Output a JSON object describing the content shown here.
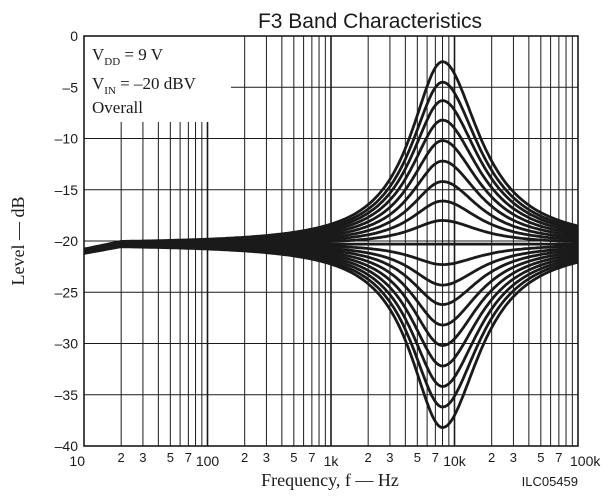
{
  "chart_data": {
    "type": "line",
    "title": "F3 Band Characteristics",
    "xlabel": "Frequency, f — Hz",
    "ylabel": "Level — dB",
    "figure_id": "ILC05459",
    "annotations": {
      "vdd_main": "V",
      "vdd_sub": "DD",
      "vdd_rest": " = 9 V",
      "vin_main": "V",
      "vin_sub": "IN",
      "vin_rest": " = –20 dBV",
      "overall": "Overall"
    },
    "x_scale": "log",
    "xlim": [
      10,
      100000
    ],
    "ylim": [
      -40,
      0
    ],
    "grid": true,
    "y_ticks": [
      0,
      -5,
      -10,
      -15,
      -20,
      -25,
      -30,
      -35,
      -40
    ],
    "y_tick_labels": [
      "0",
      "–5",
      "–10",
      "–15",
      "–20",
      "–25",
      "–30",
      "–35",
      "–40"
    ],
    "x_decade_labels": [
      {
        "value": 10,
        "label": "10"
      },
      {
        "value": 100,
        "label": "100"
      },
      {
        "value": 1000,
        "label": "1k"
      },
      {
        "value": 10000,
        "label": "10k"
      },
      {
        "value": 100000,
        "label": "100k"
      }
    ],
    "x_minor_labels": [
      {
        "value": 20,
        "label": "2"
      },
      {
        "value": 30,
        "label": "3"
      },
      {
        "value": 50,
        "label": "5"
      },
      {
        "value": 70,
        "label": "7"
      },
      {
        "value": 200,
        "label": "2"
      },
      {
        "value": 300,
        "label": "3"
      },
      {
        "value": 500,
        "label": "5"
      },
      {
        "value": 700,
        "label": "7"
      },
      {
        "value": 2000,
        "label": "2"
      },
      {
        "value": 3000,
        "label": "3"
      },
      {
        "value": 5000,
        "label": "5"
      },
      {
        "value": 7000,
        "label": "7"
      },
      {
        "value": 20000,
        "label": "2"
      },
      {
        "value": 30000,
        "label": "3"
      },
      {
        "value": 50000,
        "label": "5"
      },
      {
        "value": 70000,
        "label": "7"
      }
    ],
    "center_frequency_hz": 8000,
    "baseline_db": -20.3,
    "series": [
      {
        "peak_level_db": -2.5
      },
      {
        "peak_level_db": -4.5
      },
      {
        "peak_level_db": -6.3
      },
      {
        "peak_level_db": -8.2
      },
      {
        "peak_level_db": -10.2
      },
      {
        "peak_level_db": -12.2
      },
      {
        "peak_level_db": -14.2
      },
      {
        "peak_level_db": -16.1
      },
      {
        "peak_level_db": -18.0
      },
      {
        "peak_level_db": -20.3
      },
      {
        "peak_level_db": -22.3
      },
      {
        "peak_level_db": -24.3
      },
      {
        "peak_level_db": -26.2
      },
      {
        "peak_level_db": -28.2
      },
      {
        "peak_level_db": -30.2
      },
      {
        "peak_level_db": -32.2
      },
      {
        "peak_level_db": -34.2
      },
      {
        "peak_level_db": -36.2
      },
      {
        "peak_level_db": -38.2
      }
    ]
  }
}
